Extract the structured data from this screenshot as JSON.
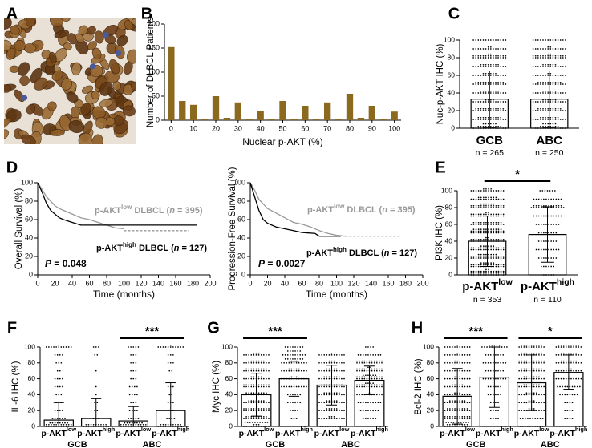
{
  "chart_data": [
    {
      "type": "image",
      "label": "A"
    },
    {
      "type": "bar",
      "label": "B",
      "ylabel": "Number of DLBCL Patients",
      "xlabel": "Nuclear p-AKT (%)",
      "x": [
        0,
        5,
        10,
        15,
        20,
        25,
        30,
        35,
        40,
        45,
        50,
        55,
        60,
        65,
        70,
        75,
        80,
        85,
        90,
        95,
        100
      ],
      "values": [
        152,
        40,
        32,
        2,
        50,
        5,
        37,
        3,
        20,
        2,
        40,
        3,
        30,
        2,
        37,
        2,
        55,
        5,
        30,
        3,
        18
      ],
      "color": "#8b6a1f",
      "xlim": [
        -3,
        103
      ],
      "ylim": [
        0,
        200
      ],
      "xticks": [
        0,
        10,
        20,
        30,
        40,
        50,
        60,
        70,
        80,
        90,
        100
      ],
      "yticks": [
        0,
        50,
        100,
        150,
        200
      ]
    },
    {
      "type": "dotbar",
      "label": "C",
      "ylabel": "Nuc-p-AKT IHC (%)",
      "categories": [
        "GCB",
        "ABC"
      ],
      "n_labels": [
        "n = 265",
        "n = 250"
      ],
      "means": [
        33,
        33
      ],
      "errors": [
        32,
        32
      ],
      "ylim": [
        0,
        100
      ],
      "yticks": [
        0,
        20,
        40,
        60,
        80,
        100
      ],
      "dots": [
        {
          "levels": [
            100,
            90,
            80,
            70,
            60,
            50,
            40,
            30,
            20,
            10,
            5,
            0
          ],
          "counts": [
            14,
            16,
            30,
            22,
            20,
            26,
            22,
            18,
            26,
            24,
            6,
            24
          ]
        },
        {
          "levels": [
            100,
            90,
            80,
            70,
            60,
            50,
            40,
            30,
            20,
            10,
            5,
            0
          ],
          "counts": [
            14,
            16,
            30,
            20,
            16,
            24,
            20,
            20,
            24,
            22,
            6,
            22
          ]
        }
      ]
    },
    {
      "type": "survival",
      "label": "D",
      "ylabel": "Overall Survival (%)",
      "xlabel": "Time (months)",
      "xlim": [
        0,
        200
      ],
      "ylim": [
        0,
        100
      ],
      "xticks": [
        0,
        20,
        40,
        60,
        80,
        100,
        120,
        140,
        160,
        180,
        200
      ],
      "yticks": [
        0,
        20,
        40,
        60,
        80,
        100
      ],
      "series": [
        {
          "color": "#999999",
          "line_style": "solid",
          "x": [
            0,
            5,
            10,
            15,
            20,
            25,
            30,
            40,
            50,
            60,
            70,
            80,
            90,
            100
          ],
          "y": [
            100,
            93,
            85,
            80,
            75,
            72,
            70,
            66,
            62,
            60,
            57,
            54,
            51,
            50
          ]
        },
        {
          "color": "#999999",
          "line_style": "dashed",
          "x": [
            100,
            175
          ],
          "y": [
            48,
            48
          ]
        },
        {
          "color": "#000000",
          "line_style": "solid",
          "x": [
            0,
            5,
            10,
            15,
            20,
            25,
            30,
            40,
            50,
            185
          ],
          "y": [
            100,
            90,
            78,
            70,
            66,
            62,
            60,
            57,
            54,
            54
          ]
        }
      ],
      "annotations": [
        {
          "parts": [
            "p-AKT",
            "low",
            " DLBCL (",
            "n",
            " = 395)"
          ],
          "color": "#999999"
        },
        {
          "parts": [
            "p-AKT",
            "high",
            " DLBCL (",
            "n",
            " = 127)"
          ],
          "color": "#000000"
        },
        {
          "parts": [
            "P",
            " = 0.048"
          ],
          "color": "#000000"
        }
      ]
    },
    {
      "type": "survival",
      "ylabel": "Progression-Free Survival (%)",
      "xlabel": "Time (months)",
      "xlim": [
        0,
        200
      ],
      "ylim": [
        0,
        100
      ],
      "xticks": [
        0,
        20,
        40,
        60,
        80,
        100,
        120,
        140,
        160,
        180,
        200
      ],
      "yticks": [
        0,
        20,
        40,
        60,
        80,
        100
      ],
      "series": [
        {
          "color": "#999999",
          "line_style": "solid",
          "x": [
            0,
            5,
            10,
            20,
            30,
            40,
            50,
            60,
            70,
            80,
            90,
            100,
            110
          ],
          "y": [
            100,
            92,
            82,
            72,
            67,
            62,
            57,
            55,
            52,
            48,
            45,
            43,
            42
          ]
        },
        {
          "color": "#999999",
          "line_style": "dashed",
          "x": [
            110,
            175
          ],
          "y": [
            42,
            42
          ]
        },
        {
          "color": "#000000",
          "line_style": "solid",
          "x": [
            0,
            5,
            10,
            15,
            20,
            30,
            40,
            50,
            60,
            75,
            80,
            105
          ],
          "y": [
            100,
            85,
            70,
            60,
            56,
            52,
            50,
            48,
            46,
            45,
            42,
            42
          ]
        }
      ],
      "annotations": [
        {
          "parts": [
            "p-AKT",
            "low",
            " DLBCL (",
            "n",
            " = 395)"
          ],
          "color": "#999999"
        },
        {
          "parts": [
            "p-AKT",
            "high",
            " DLBCL (",
            "n",
            " = 127)"
          ],
          "color": "#000000"
        },
        {
          "parts": [
            "P",
            " = 0.0027"
          ],
          "color": "#000000"
        }
      ]
    },
    {
      "type": "dotbar",
      "label": "E",
      "ylabel": "PI3K IHC (%)",
      "categories": [
        [
          "p-AKT",
          "low"
        ],
        [
          "p-AKT",
          "high"
        ]
      ],
      "n_labels": [
        "n = 353",
        "n = 110"
      ],
      "means": [
        40,
        48
      ],
      "errors": [
        30,
        33
      ],
      "ylim": [
        0,
        100
      ],
      "yticks": [
        0,
        20,
        40,
        60,
        80,
        100
      ],
      "significance": "*",
      "dots": [
        {
          "levels": [
            100,
            90,
            80,
            70,
            60,
            50,
            40,
            30,
            20,
            10,
            0
          ],
          "counts": [
            18,
            22,
            34,
            30,
            26,
            40,
            30,
            34,
            36,
            34,
            44
          ]
        },
        {
          "levels": [
            100,
            90,
            80,
            70,
            60,
            50,
            40,
            30,
            20,
            10,
            0
          ],
          "counts": [
            7,
            12,
            26,
            12,
            10,
            8,
            8,
            10,
            8,
            6,
            6
          ]
        }
      ]
    },
    {
      "type": "dotbar",
      "label": "F",
      "ylabel": "IL-6 IHC (%)",
      "categories": [
        [
          "p-AKT",
          "low"
        ],
        [
          "p-AKT",
          "high"
        ],
        [
          "p-AKT",
          "low"
        ],
        [
          "p-AKT",
          "high"
        ]
      ],
      "group_labels": [
        "GCB",
        "ABC"
      ],
      "means": [
        8,
        10,
        7,
        20
      ],
      "errors": [
        22,
        25,
        18,
        35
      ],
      "ylim": [
        0,
        100
      ],
      "yticks": [
        0,
        20,
        40,
        60,
        80,
        100
      ],
      "significance": [
        null,
        "***"
      ],
      "dots": [
        {
          "levels": [
            100,
            90,
            80,
            70,
            60,
            50,
            40,
            30,
            20,
            10,
            0
          ],
          "counts": [
            12,
            4,
            3,
            2,
            4,
            4,
            3,
            3,
            4,
            6,
            30
          ]
        },
        {
          "levels": [
            100,
            90,
            70,
            50,
            40,
            30,
            20,
            10,
            0
          ],
          "counts": [
            3,
            2,
            1,
            1,
            1,
            2,
            2,
            3,
            20
          ]
        },
        {
          "levels": [
            100,
            90,
            80,
            70,
            60,
            50,
            40,
            30,
            20,
            10,
            0
          ],
          "counts": [
            5,
            3,
            3,
            3,
            3,
            4,
            4,
            3,
            4,
            5,
            30
          ]
        },
        {
          "levels": [
            100,
            90,
            80,
            70,
            50,
            40,
            30,
            20,
            10,
            0
          ],
          "counts": [
            12,
            3,
            3,
            2,
            3,
            2,
            3,
            3,
            4,
            20
          ]
        }
      ]
    },
    {
      "type": "dotbar",
      "label": "G",
      "ylabel": "Myc IHC (%)",
      "categories": [
        [
          "p-AKT",
          "low"
        ],
        [
          "p-AKT",
          "high"
        ],
        [
          "p-AKT",
          "low"
        ],
        [
          "p-AKT",
          "high"
        ]
      ],
      "group_labels": [
        "GCB",
        "ABC"
      ],
      "means": [
        40,
        60,
        52,
        58
      ],
      "errors": [
        27,
        22,
        25,
        18
      ],
      "ylim": [
        0,
        100
      ],
      "yticks": [
        0,
        20,
        40,
        60,
        80,
        100
      ],
      "significance": [
        "***",
        null
      ],
      "dots": [
        {
          "levels": [
            90,
            80,
            70,
            60,
            50,
            40,
            30,
            20,
            10,
            5,
            0
          ],
          "counts": [
            14,
            18,
            20,
            16,
            22,
            20,
            18,
            22,
            20,
            10,
            14
          ]
        },
        {
          "levels": [
            100,
            95,
            90,
            85,
            80,
            70,
            60,
            50,
            40,
            30,
            20,
            10
          ],
          "counts": [
            8,
            6,
            10,
            8,
            14,
            16,
            14,
            12,
            6,
            6,
            4,
            3
          ]
        },
        {
          "levels": [
            90,
            80,
            70,
            60,
            50,
            40,
            30,
            20,
            10,
            0
          ],
          "counts": [
            12,
            14,
            16,
            18,
            20,
            18,
            16,
            16,
            14,
            10
          ]
        },
        {
          "levels": [
            100,
            90,
            80,
            70,
            60,
            50,
            40,
            30,
            20,
            10
          ],
          "counts": [
            4,
            10,
            22,
            24,
            28,
            26,
            12,
            10,
            8,
            6
          ]
        }
      ]
    },
    {
      "type": "dotbar",
      "label": "H",
      "ylabel": "Bcl-2 IHC (%)",
      "categories": [
        [
          "p-AKT",
          "low"
        ],
        [
          "p-AKT",
          "high"
        ],
        [
          "p-AKT",
          "low"
        ],
        [
          "p-AKT",
          "high"
        ]
      ],
      "group_labels": [
        "GCB",
        "ABC"
      ],
      "means": [
        38,
        62,
        55,
        68
      ],
      "errors": [
        35,
        38,
        35,
        22
      ],
      "ylim": [
        0,
        100
      ],
      "yticks": [
        0,
        20,
        40,
        60,
        80,
        100
      ],
      "significance": [
        "***",
        "*"
      ],
      "dots": [
        {
          "levels": [
            100,
            90,
            80,
            70,
            60,
            50,
            40,
            30,
            20,
            10,
            5,
            0
          ],
          "counts": [
            12,
            12,
            14,
            14,
            14,
            16,
            14,
            18,
            20,
            22,
            10,
            20
          ]
        },
        {
          "levels": [
            100,
            90,
            80,
            70,
            60,
            50,
            40,
            30,
            20,
            10
          ],
          "counts": [
            16,
            8,
            10,
            8,
            10,
            6,
            6,
            4,
            4,
            4
          ]
        },
        {
          "levels": [
            100,
            90,
            80,
            70,
            60,
            50,
            40,
            30,
            20,
            10,
            0
          ],
          "counts": [
            20,
            20,
            22,
            20,
            18,
            18,
            16,
            14,
            14,
            10,
            10
          ]
        },
        {
          "levels": [
            100,
            90,
            80,
            70,
            60,
            50,
            40,
            30,
            20,
            10
          ],
          "counts": [
            20,
            18,
            18,
            14,
            12,
            10,
            8,
            4,
            4,
            4
          ]
        }
      ]
    }
  ]
}
